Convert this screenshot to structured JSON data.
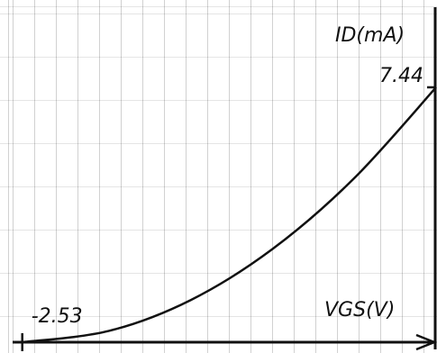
{
  "chart_data": {
    "type": "line",
    "x_label": "VGS(V)",
    "y_label": "ID(mA)",
    "x": [
      -2.53,
      -2,
      -1.5,
      -1,
      -0.5,
      0
    ],
    "series": [
      {
        "color": "#111111",
        "values": [
          0,
          0.33,
          1.23,
          2.72,
          4.79,
          7.44
        ]
      }
    ],
    "xlim": [
      -2.6,
      0
    ],
    "ylim": [
      0,
      9.5
    ],
    "xticks": [
      -2.53
    ],
    "yticks": [
      7.44
    ]
  }
}
